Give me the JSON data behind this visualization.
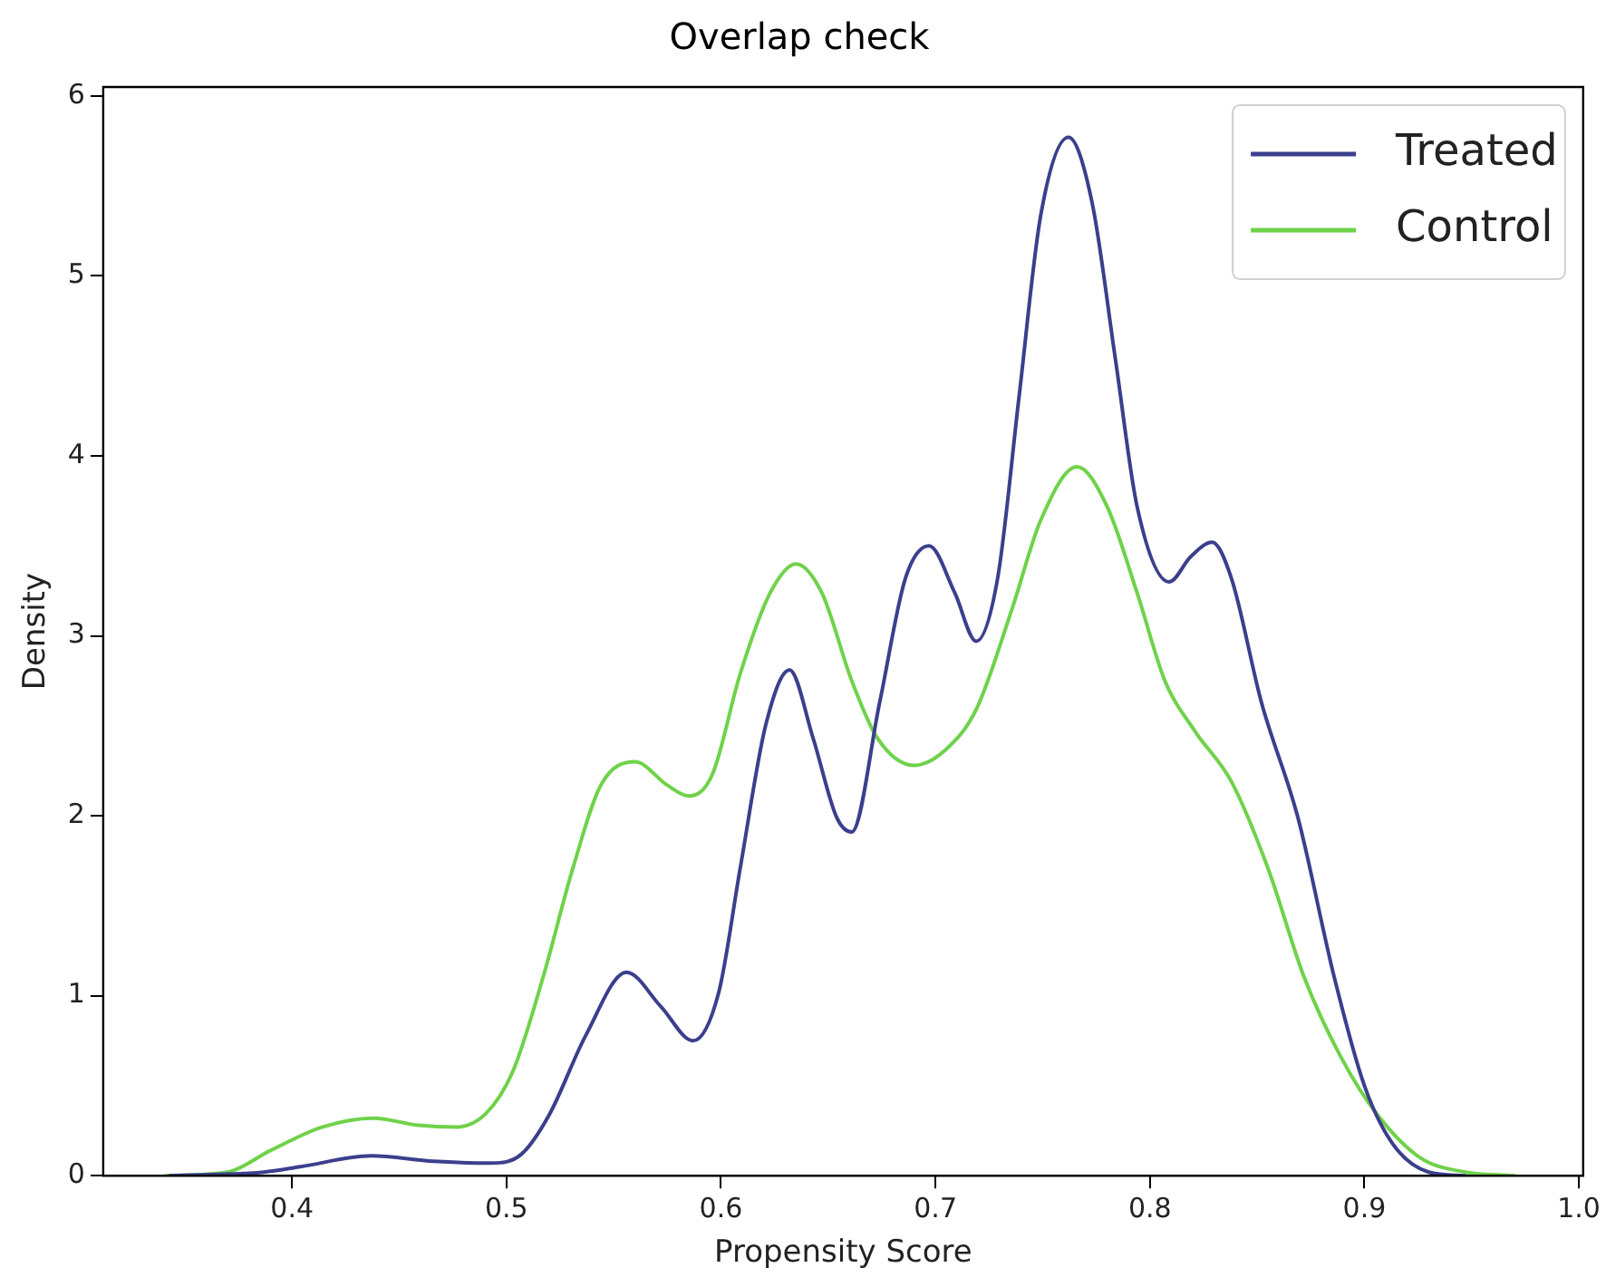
{
  "chart_data": {
    "type": "line",
    "title": "Overlap check",
    "xlabel": "Propensity Score",
    "ylabel": "Density",
    "xlim": [
      0.312,
      1.002
    ],
    "ylim": [
      0,
      6.05
    ],
    "xticks": [
      {
        "value": 0.4,
        "label": "0.4"
      },
      {
        "value": 0.5,
        "label": "0.5"
      },
      {
        "value": 0.6,
        "label": "0.6"
      },
      {
        "value": 0.7,
        "label": "0.7"
      },
      {
        "value": 0.8,
        "label": "0.8"
      },
      {
        "value": 0.9,
        "label": "0.9"
      },
      {
        "value": 1.0,
        "label": "1.0"
      }
    ],
    "yticks": [
      0,
      1,
      2,
      3,
      4,
      5,
      6
    ],
    "grid": false,
    "legend": "top right",
    "marker": "none",
    "line_style": "solid",
    "series": [
      {
        "name": "Treated",
        "color": "#3b3f8c",
        "x": [
          0.343,
          0.387,
          0.404,
          0.437,
          0.466,
          0.493,
          0.507,
          0.52,
          0.537,
          0.556,
          0.572,
          0.587,
          0.599,
          0.609,
          0.621,
          0.632,
          0.643,
          0.654,
          0.661,
          0.674,
          0.686,
          0.697,
          0.709,
          0.719,
          0.729,
          0.739,
          0.749,
          0.762,
          0.773,
          0.784,
          0.794,
          0.809,
          0.819,
          0.829,
          0.838,
          0.852,
          0.869,
          0.886,
          0.9,
          0.913,
          0.93,
          0.947
        ],
        "values": [
          0,
          0.02,
          0.05,
          0.11,
          0.08,
          0.07,
          0.12,
          0.34,
          0.78,
          1.13,
          0.94,
          0.75,
          1.02,
          1.71,
          2.51,
          2.81,
          2.43,
          1.99,
          1.91,
          2.63,
          3.32,
          3.5,
          3.24,
          2.97,
          3.32,
          4.33,
          5.33,
          5.77,
          5.41,
          4.53,
          3.72,
          3.3,
          3.44,
          3.52,
          3.32,
          2.63,
          1.99,
          1.1,
          0.5,
          0.18,
          0.02,
          0
        ]
      },
      {
        "name": "Control",
        "color": "#6fd24a",
        "x": [
          0.341,
          0.37,
          0.39,
          0.414,
          0.438,
          0.459,
          0.476,
          0.49,
          0.503,
          0.517,
          0.531,
          0.544,
          0.56,
          0.575,
          0.585,
          0.596,
          0.609,
          0.623,
          0.635,
          0.647,
          0.661,
          0.673,
          0.69,
          0.705,
          0.719,
          0.736,
          0.749,
          0.766,
          0.78,
          0.794,
          0.807,
          0.821,
          0.838,
          0.855,
          0.872,
          0.889,
          0.906,
          0.926,
          0.947,
          0.97
        ],
        "values": [
          0,
          0.02,
          0.14,
          0.27,
          0.32,
          0.28,
          0.27,
          0.34,
          0.58,
          1.1,
          1.71,
          2.17,
          2.3,
          2.17,
          2.11,
          2.23,
          2.79,
          3.24,
          3.4,
          3.24,
          2.75,
          2.43,
          2.28,
          2.37,
          2.59,
          3.16,
          3.64,
          3.94,
          3.72,
          3.24,
          2.75,
          2.47,
          2.19,
          1.71,
          1.1,
          0.66,
          0.34,
          0.1,
          0.02,
          0
        ]
      }
    ]
  }
}
